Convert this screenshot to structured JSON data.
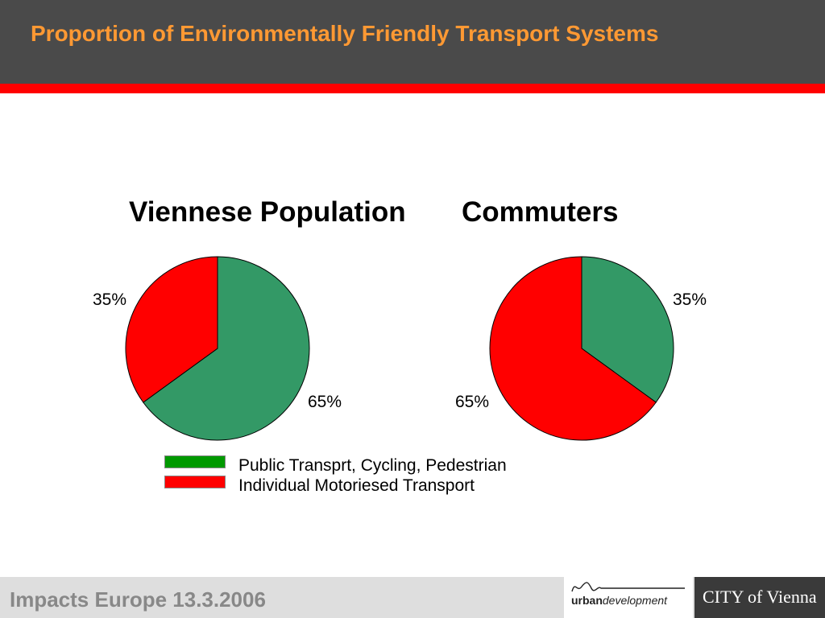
{
  "header": {
    "title": "Proportion of Environmentally Friendly Transport Systems"
  },
  "colors": {
    "header_bg": "#4a4a4a",
    "title": "#ff9933",
    "rule": "#ff0000",
    "green_slice": "#339966",
    "red_slice": "#ff0000",
    "legend_green": "#009900",
    "legend_red": "#ff0000"
  },
  "chart_data": [
    {
      "type": "pie",
      "title": "Viennese Population",
      "slices": [
        {
          "label": "Public Transprt, Cycling, Pedestrian",
          "value": 65,
          "display": "65%",
          "color": "#339966"
        },
        {
          "label": "Individual Motoriesed Transport",
          "value": 35,
          "display": "35%",
          "color": "#ff0000"
        }
      ]
    },
    {
      "type": "pie",
      "title": "Commuters",
      "slices": [
        {
          "label": "Public Transprt, Cycling, Pedestrian",
          "value": 35,
          "display": "35%",
          "color": "#339966"
        },
        {
          "label": "Individual Motoriesed Transport",
          "value": 65,
          "display": "65%",
          "color": "#ff0000"
        }
      ]
    }
  ],
  "legend": [
    {
      "label": "Public Transprt, Cycling, Pedestrian",
      "color": "#009900"
    },
    {
      "label": "Individual Motoriesed Transport",
      "color": "#ff0000"
    }
  ],
  "footer": {
    "text": "Impacts Europe 13.3.2006",
    "logo_urban_bold": "urban",
    "logo_urban_italic": "development",
    "logo_vienna": "CITY of Vienna"
  }
}
